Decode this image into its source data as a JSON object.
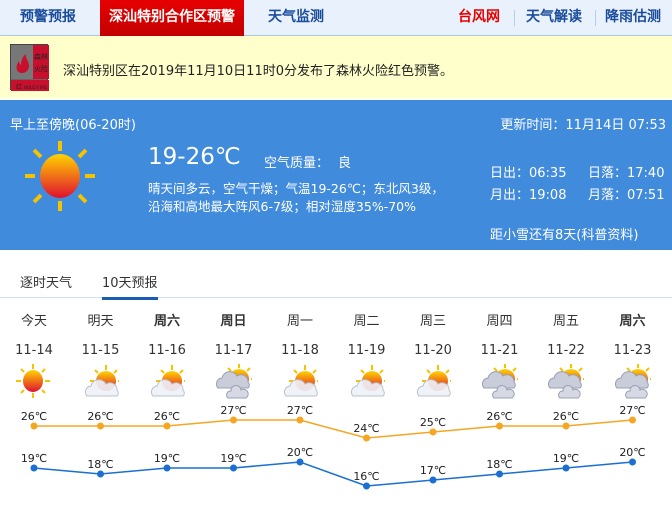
{
  "nav": {
    "items": [
      {
        "label": "预警预报"
      },
      {
        "label": "深汕特别合作区预警",
        "active": true
      },
      {
        "label": "天气监测"
      }
    ],
    "right": [
      {
        "label": "台风网",
        "color": "#e60000"
      },
      {
        "label": "天气解读"
      },
      {
        "label": "降雨估测"
      }
    ]
  },
  "alert": {
    "icon": "forest-fire-red-warning-icon",
    "icon_text": [
      "森林",
      "火险",
      "红",
      "WILD FIRE"
    ],
    "text": "深汕特别区在2019年11月10日11时0分发布了森林火险红色预警。"
  },
  "current": {
    "period": "早上至傍晚(06-20时)",
    "update": "更新时间：11月14日 07:53",
    "icon": "sunny-icon",
    "temp": "19-26℃",
    "aqi_label": "空气质量：",
    "aqi": "良",
    "desc1": "晴天间多云，空气干燥；气温19-26℃；东北风3级，",
    "desc2": "沿海和高地最大阵风6-7级；相对湿度35%-70%",
    "sunrise": "日出：06:35",
    "sunset": "日落：17:40",
    "moonrise": "月出：19:08",
    "moonset": "月落：07:51",
    "term": "距小雪还有8天(科普资料)"
  },
  "tabs": [
    {
      "label": "逐时天气"
    },
    {
      "label": "10天预报",
      "active": true
    }
  ],
  "colors": {
    "high": "#f5a623",
    "low": "#1a6fd1",
    "panel": "#418bdc"
  },
  "forecast": [
    {
      "day": "今天",
      "date": "11-14",
      "icon": "sunny",
      "high": 26,
      "low": 19,
      "high_label": "26℃",
      "low_label": "19℃"
    },
    {
      "day": "明天",
      "date": "11-15",
      "icon": "partly-cloudy",
      "high": 26,
      "low": 18,
      "high_label": "26℃",
      "low_label": "18℃"
    },
    {
      "day": "周六",
      "date": "11-16",
      "icon": "partly-cloudy",
      "high": 26,
      "low": 19,
      "high_label": "26℃",
      "low_label": "19℃",
      "bold": true
    },
    {
      "day": "周日",
      "date": "11-17",
      "icon": "cloudy",
      "high": 27,
      "low": 19,
      "high_label": "27℃",
      "low_label": "19℃",
      "bold": true
    },
    {
      "day": "周一",
      "date": "11-18",
      "icon": "partly-cloudy",
      "high": 27,
      "low": 20,
      "high_label": "27℃",
      "low_label": "20℃"
    },
    {
      "day": "周二",
      "date": "11-19",
      "icon": "partly-cloudy",
      "high": 24,
      "low": 16,
      "high_label": "24℃",
      "low_label": "16℃"
    },
    {
      "day": "周三",
      "date": "11-20",
      "icon": "partly-cloudy",
      "high": 25,
      "low": 17,
      "high_label": "25℃",
      "low_label": "17℃"
    },
    {
      "day": "周四",
      "date": "11-21",
      "icon": "cloudy",
      "high": 26,
      "low": 18,
      "high_label": "26℃",
      "low_label": "18℃"
    },
    {
      "day": "周五",
      "date": "11-22",
      "icon": "cloudy",
      "high": 26,
      "low": 19,
      "high_label": "26℃",
      "low_label": "19℃"
    },
    {
      "day": "周六",
      "date": "11-23",
      "icon": "cloudy",
      "high": 27,
      "low": 20,
      "high_label": "27℃",
      "low_label": "20℃",
      "bold": true
    }
  ]
}
